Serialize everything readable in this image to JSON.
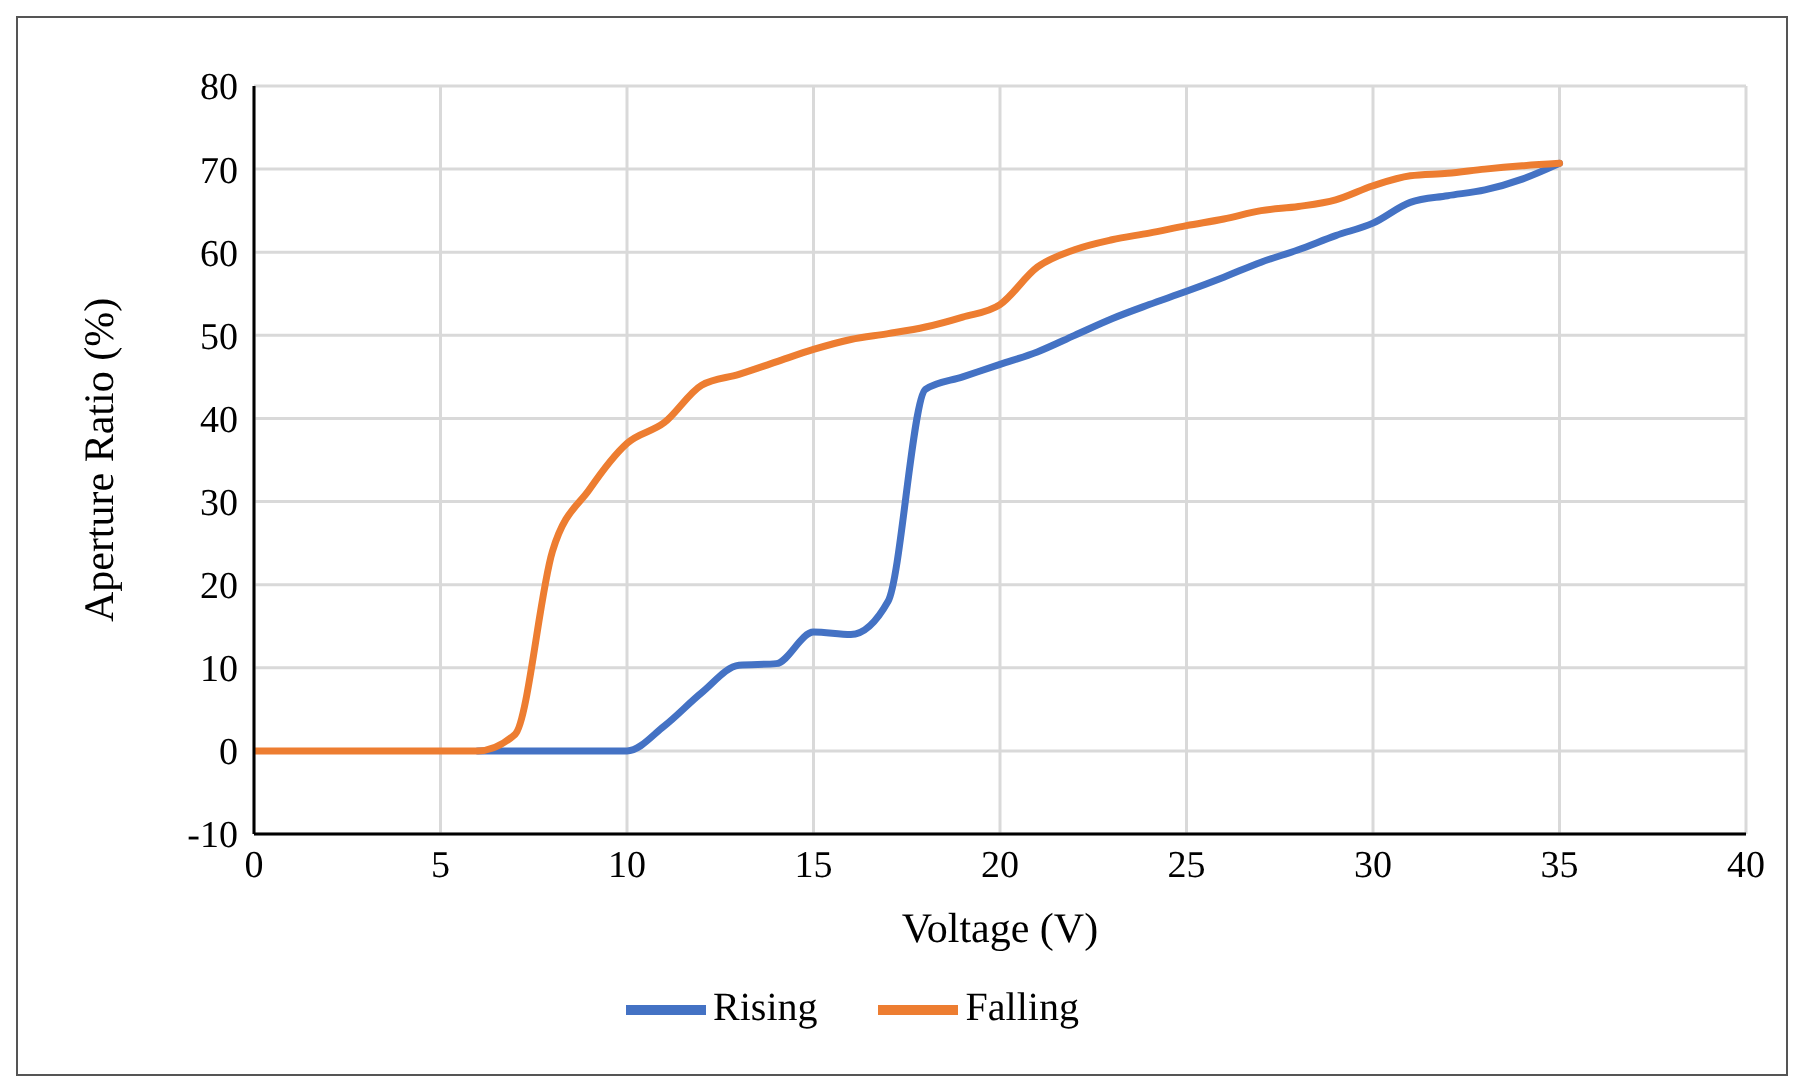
{
  "chart_data": {
    "type": "line",
    "xlabel": "Voltage (V)",
    "ylabel": "Aperture Ratio (%)",
    "x": [
      0,
      1,
      2,
      3,
      4,
      5,
      6,
      7,
      8,
      9,
      10,
      11,
      12,
      13,
      14,
      15,
      16,
      17,
      18,
      19,
      20,
      21,
      22,
      23,
      24,
      25,
      26,
      27,
      28,
      29,
      30,
      31,
      32,
      33,
      34,
      35
    ],
    "series": [
      {
        "name": "Rising",
        "color": "#4472c4",
        "values": [
          null,
          null,
          null,
          null,
          null,
          null,
          0,
          0,
          0,
          0,
          0,
          3,
          7,
          10.3,
          10.5,
          14.3,
          14,
          18,
          43.5,
          45,
          46.5,
          48,
          50,
          52,
          53.7,
          55.3,
          57,
          58.8,
          60.3,
          62,
          63.5,
          66,
          66.8,
          67.5,
          68.8,
          70.7
        ]
      },
      {
        "name": "Falling",
        "color": "#ed7d31",
        "values": [
          0,
          0,
          0,
          0,
          0,
          0,
          0,
          2,
          24,
          31.5,
          37,
          39.5,
          44,
          45.3,
          46.8,
          48.3,
          49.5,
          50.2,
          51,
          52.2,
          53.7,
          58.2,
          60.3,
          61.5,
          62.3,
          63.2,
          64,
          65,
          65.5,
          66.3,
          68,
          69.2,
          69.5,
          70,
          70.4,
          70.7
        ]
      }
    ],
    "xlim": [
      0,
      40
    ],
    "xticks": [
      0,
      5,
      10,
      15,
      20,
      25,
      30,
      35,
      40
    ],
    "ylim": [
      -10,
      80
    ],
    "yticks": [
      -10,
      0,
      10,
      20,
      30,
      40,
      50,
      60,
      70,
      80
    ],
    "grid": true,
    "legend": "bottom",
    "marker": "none",
    "line_style": "solid"
  }
}
